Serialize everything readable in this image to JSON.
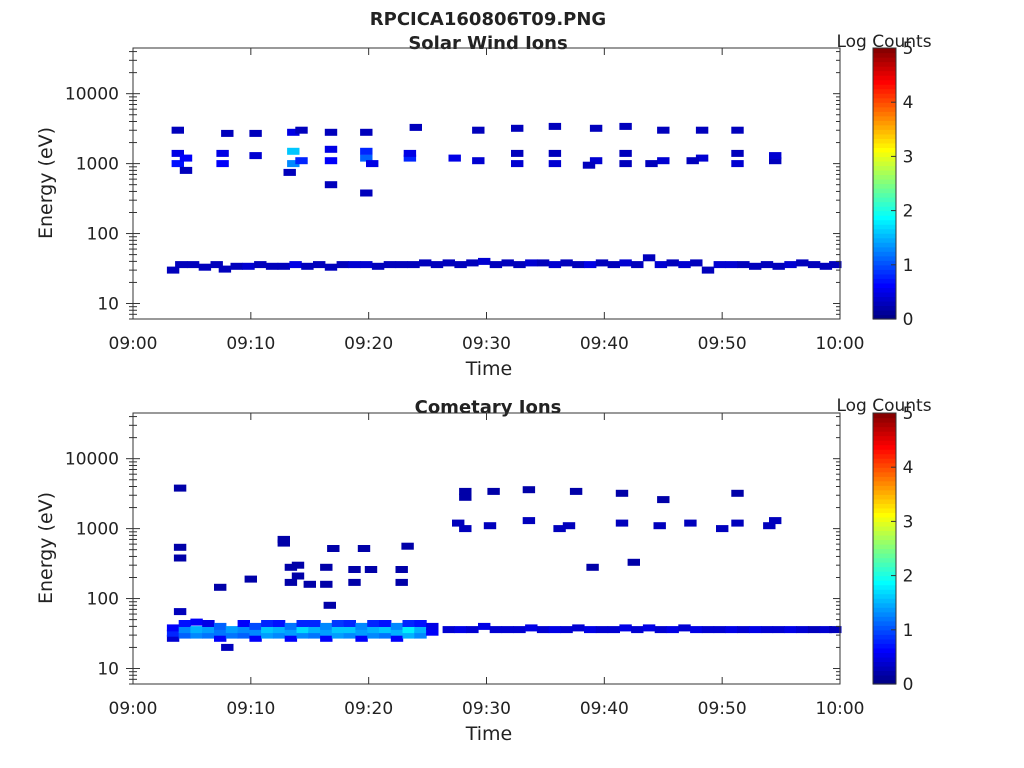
{
  "figure": {
    "filename": "RPCICA160806T09.PNG"
  },
  "colormap": {
    "stops": [
      "#00007f",
      "#0000ff",
      "#007fff",
      "#00ffff",
      "#7fff7f",
      "#ffff00",
      "#ff7f00",
      "#ff0000",
      "#7f0000"
    ],
    "white": "#ffffff"
  },
  "chart_data": [
    {
      "type": "heatmap",
      "title": "Solar Wind Ions",
      "xlabel": "Time",
      "ylabel": "Energy (eV)",
      "x_ticks": [
        "09:00",
        "09:10",
        "09:20",
        "09:30",
        "09:40",
        "09:50",
        "10:00"
      ],
      "x_range_minutes": [
        0,
        60
      ],
      "y_scale": "log",
      "y_ticks": [
        "10",
        "100",
        "1000",
        "10000"
      ],
      "y_range": [
        6,
        45000
      ],
      "colorbar": {
        "label": "Log Counts",
        "range": [
          0,
          5
        ],
        "ticks": [
          "0",
          "1",
          "2",
          "3",
          "4",
          "5"
        ]
      },
      "cells": [
        [
          3.4,
          30,
          0.3
        ],
        [
          4.1,
          36,
          0.3
        ],
        [
          5.1,
          36,
          0.3
        ],
        [
          6.1,
          33,
          0.3
        ],
        [
          7.1,
          36,
          0.3
        ],
        [
          7.8,
          31,
          0.3
        ],
        [
          8.8,
          34,
          0.3
        ],
        [
          9.8,
          34,
          0.4
        ],
        [
          10.8,
          36,
          0.3
        ],
        [
          11.8,
          34,
          0.3
        ],
        [
          12.8,
          34,
          0.3
        ],
        [
          13.8,
          36,
          0.5
        ],
        [
          14.8,
          34,
          0.3
        ],
        [
          15.8,
          36,
          0.3
        ],
        [
          16.8,
          33,
          0.3
        ],
        [
          17.8,
          36,
          0.3
        ],
        [
          18.8,
          36,
          0.4
        ],
        [
          19.8,
          36,
          0.4
        ],
        [
          20.8,
          34,
          0.3
        ],
        [
          21.8,
          36,
          0.3
        ],
        [
          22.8,
          36,
          0.3
        ],
        [
          23.8,
          36,
          0.3
        ],
        [
          24.8,
          38,
          0.3
        ],
        [
          25.8,
          36,
          0.3
        ],
        [
          26.8,
          38,
          0.3
        ],
        [
          27.8,
          36,
          0.3
        ],
        [
          28.8,
          38,
          0.3
        ],
        [
          29.8,
          40,
          0.4
        ],
        [
          30.8,
          36,
          0.3
        ],
        [
          31.8,
          38,
          0.3
        ],
        [
          32.8,
          36,
          0.3
        ],
        [
          33.8,
          38,
          0.4
        ],
        [
          34.8,
          38,
          0.3
        ],
        [
          35.8,
          36,
          0.4
        ],
        [
          36.8,
          38,
          0.3
        ],
        [
          37.8,
          36,
          0.3
        ],
        [
          38.8,
          36,
          0.5
        ],
        [
          39.8,
          38,
          0.3
        ],
        [
          40.8,
          36,
          0.3
        ],
        [
          41.8,
          38,
          0.4
        ],
        [
          42.8,
          36,
          0.3
        ],
        [
          43.8,
          45,
          0.3
        ],
        [
          44.8,
          36,
          0.4
        ],
        [
          45.8,
          38,
          0.3
        ],
        [
          46.8,
          36,
          0.4
        ],
        [
          47.8,
          38,
          0.3
        ],
        [
          48.8,
          30,
          0.3
        ],
        [
          49.8,
          36,
          0.4
        ],
        [
          50.8,
          36,
          0.4
        ],
        [
          51.8,
          36,
          0.3
        ],
        [
          52.8,
          34,
          0.3
        ],
        [
          53.8,
          36,
          0.3
        ],
        [
          54.8,
          34,
          0.3
        ],
        [
          55.8,
          36,
          0.4
        ],
        [
          56.8,
          38,
          0.3
        ],
        [
          57.8,
          36,
          0.3
        ],
        [
          58.8,
          34,
          0.3
        ],
        [
          59.6,
          36,
          0.3
        ],
        [
          3.8,
          1000,
          0.7
        ],
        [
          3.8,
          1400,
          0.5
        ],
        [
          3.8,
          3000,
          0.3
        ],
        [
          4.5,
          800,
          0.3
        ],
        [
          4.5,
          1200,
          0.6
        ],
        [
          7.6,
          1000,
          0.6
        ],
        [
          7.6,
          1400,
          0.5
        ],
        [
          8.0,
          2700,
          0.3
        ],
        [
          10.4,
          1300,
          0.4
        ],
        [
          10.4,
          2700,
          0.3
        ],
        [
          13.6,
          1000,
          1.3
        ],
        [
          13.6,
          1500,
          1.6
        ],
        [
          13.6,
          2800,
          0.5
        ],
        [
          14.3,
          1100,
          0.8
        ],
        [
          14.3,
          3000,
          0.3
        ],
        [
          13.3,
          750,
          0.3
        ],
        [
          16.8,
          1100,
          0.6
        ],
        [
          16.8,
          1600,
          0.5
        ],
        [
          16.8,
          2800,
          0.3
        ],
        [
          16.8,
          500,
          0.3
        ],
        [
          19.8,
          1200,
          1.1
        ],
        [
          19.8,
          1500,
          0.8
        ],
        [
          19.8,
          2800,
          0.3
        ],
        [
          20.3,
          1000,
          0.5
        ],
        [
          19.8,
          380,
          0.3
        ],
        [
          23.5,
          1200,
          0.8
        ],
        [
          23.5,
          1400,
          0.5
        ],
        [
          24.0,
          3300,
          0.3
        ],
        [
          27.3,
          1200,
          0.5
        ],
        [
          29.3,
          1100,
          0.4
        ],
        [
          29.3,
          3000,
          0.3
        ],
        [
          32.6,
          1000,
          0.4
        ],
        [
          32.6,
          1400,
          0.3
        ],
        [
          32.6,
          3200,
          0.3
        ],
        [
          35.8,
          1000,
          0.4
        ],
        [
          35.8,
          1400,
          0.3
        ],
        [
          35.8,
          3400,
          0.3
        ],
        [
          39.3,
          1100,
          0.4
        ],
        [
          39.3,
          3200,
          0.3
        ],
        [
          38.7,
          950,
          0.3
        ],
        [
          41.8,
          1000,
          0.3
        ],
        [
          41.8,
          1400,
          0.3
        ],
        [
          41.8,
          3400,
          0.3
        ],
        [
          45.0,
          1100,
          0.4
        ],
        [
          45.0,
          3000,
          0.3
        ],
        [
          44.0,
          1000,
          0.3
        ],
        [
          48.3,
          1200,
          0.4
        ],
        [
          48.3,
          3000,
          0.3
        ],
        [
          47.5,
          1100,
          0.3
        ],
        [
          51.3,
          1000,
          0.4
        ],
        [
          51.3,
          1400,
          0.3
        ],
        [
          51.3,
          3000,
          0.3
        ],
        [
          54.5,
          1100,
          0.3
        ],
        [
          54.5,
          1300,
          0.4
        ]
      ]
    },
    {
      "type": "heatmap",
      "title": "Cometary Ions",
      "xlabel": "Time",
      "ylabel": "Energy (eV)",
      "x_ticks": [
        "09:00",
        "09:10",
        "09:20",
        "09:30",
        "09:40",
        "09:50",
        "10:00"
      ],
      "x_range_minutes": [
        0,
        60
      ],
      "y_scale": "log",
      "y_ticks": [
        "10",
        "100",
        "1000",
        "10000"
      ],
      "y_range": [
        6,
        45000
      ],
      "colorbar": {
        "label": "Log Counts",
        "range": [
          0,
          5
        ],
        "ticks": [
          "0",
          "1",
          "2",
          "3",
          "4",
          "5"
        ]
      },
      "cells": [
        [
          3.4,
          27,
          0.4
        ],
        [
          3.4,
          32,
          0.8
        ],
        [
          3.4,
          38,
          0.6
        ],
        [
          4.4,
          30,
          1.1
        ],
        [
          4.4,
          36,
          1.3
        ],
        [
          4.4,
          44,
          0.7
        ],
        [
          5.4,
          30,
          1.3
        ],
        [
          5.4,
          36,
          1.5
        ],
        [
          5.4,
          46,
          0.6
        ],
        [
          6.4,
          30,
          1.2
        ],
        [
          6.4,
          36,
          1.4
        ],
        [
          6.4,
          44,
          0.5
        ],
        [
          7.4,
          27,
          0.6
        ],
        [
          7.4,
          33,
          1.2
        ],
        [
          7.4,
          40,
          1.1
        ],
        [
          8.0,
          20,
          0.3
        ],
        [
          8.4,
          30,
          1.2
        ],
        [
          8.4,
          36,
          1.4
        ],
        [
          9.4,
          30,
          1.1
        ],
        [
          9.4,
          36,
          1.3
        ],
        [
          9.4,
          44,
          0.6
        ],
        [
          10.4,
          27,
          0.6
        ],
        [
          10.4,
          33,
          1.3
        ],
        [
          10.4,
          40,
          1.0
        ],
        [
          11.4,
          30,
          1.4
        ],
        [
          11.4,
          36,
          1.6
        ],
        [
          11.4,
          44,
          0.8
        ],
        [
          12.4,
          30,
          1.3
        ],
        [
          12.4,
          36,
          1.5
        ],
        [
          12.4,
          44,
          0.7
        ],
        [
          13.4,
          27,
          0.6
        ],
        [
          13.4,
          33,
          1.4
        ],
        [
          13.4,
          40,
          1.2
        ],
        [
          14.4,
          30,
          1.3
        ],
        [
          14.4,
          36,
          1.7
        ],
        [
          14.4,
          44,
          0.8
        ],
        [
          15.4,
          30,
          1.2
        ],
        [
          15.4,
          36,
          1.5
        ],
        [
          15.4,
          44,
          0.8
        ],
        [
          16.4,
          27,
          0.6
        ],
        [
          16.4,
          33,
          1.4
        ],
        [
          16.4,
          40,
          1.3
        ],
        [
          17.4,
          30,
          1.4
        ],
        [
          17.4,
          36,
          1.6
        ],
        [
          17.4,
          44,
          0.9
        ],
        [
          18.4,
          30,
          1.3
        ],
        [
          18.4,
          36,
          1.6
        ],
        [
          18.4,
          44,
          0.8
        ],
        [
          19.4,
          27,
          0.6
        ],
        [
          19.4,
          33,
          1.4
        ],
        [
          19.4,
          40,
          1.3
        ],
        [
          20.4,
          30,
          1.3
        ],
        [
          20.4,
          36,
          1.5
        ],
        [
          20.4,
          44,
          0.8
        ],
        [
          21.4,
          30,
          1.2
        ],
        [
          21.4,
          36,
          1.6
        ],
        [
          21.4,
          44,
          0.7
        ],
        [
          22.4,
          27,
          0.6
        ],
        [
          22.4,
          33,
          1.5
        ],
        [
          22.4,
          40,
          1.3
        ],
        [
          23.4,
          30,
          1.5
        ],
        [
          23.4,
          36,
          1.8
        ],
        [
          23.4,
          44,
          0.8
        ],
        [
          24.4,
          30,
          1.3
        ],
        [
          24.4,
          36,
          1.5
        ],
        [
          24.4,
          44,
          0.7
        ],
        [
          25.4,
          33,
          0.6
        ],
        [
          25.4,
          40,
          0.5
        ],
        [
          26.8,
          36,
          0.4
        ],
        [
          27.8,
          36,
          0.5
        ],
        [
          28.8,
          36,
          0.4
        ],
        [
          29.8,
          40,
          0.5
        ],
        [
          30.8,
          36,
          0.4
        ],
        [
          31.8,
          36,
          0.4
        ],
        [
          32.8,
          36,
          0.4
        ],
        [
          33.8,
          38,
          0.5
        ],
        [
          34.8,
          36,
          0.4
        ],
        [
          35.8,
          36,
          0.5
        ],
        [
          36.8,
          36,
          0.4
        ],
        [
          37.8,
          38,
          0.4
        ],
        [
          38.8,
          36,
          0.5
        ],
        [
          39.8,
          36,
          0.4
        ],
        [
          40.8,
          36,
          0.4
        ],
        [
          41.8,
          38,
          0.5
        ],
        [
          42.8,
          36,
          0.4
        ],
        [
          43.8,
          38,
          0.5
        ],
        [
          44.8,
          36,
          0.4
        ],
        [
          45.8,
          36,
          0.5
        ],
        [
          46.8,
          38,
          0.4
        ],
        [
          47.8,
          36,
          0.5
        ],
        [
          48.8,
          36,
          0.4
        ],
        [
          49.8,
          36,
          0.4
        ],
        [
          50.8,
          36,
          0.5
        ],
        [
          51.8,
          36,
          0.4
        ],
        [
          52.8,
          36,
          0.5
        ],
        [
          53.8,
          36,
          0.4
        ],
        [
          54.8,
          36,
          0.4
        ],
        [
          55.8,
          36,
          0.5
        ],
        [
          56.8,
          36,
          0.4
        ],
        [
          57.8,
          36,
          0.3
        ],
        [
          58.8,
          36,
          0.4
        ],
        [
          59.6,
          36,
          0.3
        ],
        [
          4.0,
          65,
          0.3
        ],
        [
          4.0,
          380,
          0.2
        ],
        [
          4.0,
          540,
          0.2
        ],
        [
          4.0,
          3800,
          0.2
        ],
        [
          7.4,
          145,
          0.2
        ],
        [
          10.0,
          190,
          0.2
        ],
        [
          12.8,
          700,
          0.2
        ],
        [
          12.8,
          620,
          0.2
        ],
        [
          13.4,
          170,
          0.2
        ],
        [
          13.4,
          280,
          0.2
        ],
        [
          14.0,
          300,
          0.2
        ],
        [
          14.0,
          210,
          0.2
        ],
        [
          15.0,
          160,
          0.2
        ],
        [
          16.4,
          160,
          0.2
        ],
        [
          16.4,
          280,
          0.2
        ],
        [
          17.0,
          520,
          0.2
        ],
        [
          16.7,
          80,
          0.2
        ],
        [
          18.8,
          260,
          0.2
        ],
        [
          18.8,
          170,
          0.2
        ],
        [
          19.6,
          520,
          0.2
        ],
        [
          20.2,
          260,
          0.2
        ],
        [
          22.8,
          170,
          0.2
        ],
        [
          22.8,
          260,
          0.2
        ],
        [
          23.3,
          560,
          0.2
        ],
        [
          27.6,
          1200,
          0.3
        ],
        [
          28.2,
          1000,
          0.3
        ],
        [
          28.2,
          3400,
          0.2
        ],
        [
          28.2,
          2800,
          0.2
        ],
        [
          30.3,
          1100,
          0.3
        ],
        [
          30.6,
          3400,
          0.2
        ],
        [
          33.6,
          1300,
          0.3
        ],
        [
          33.6,
          3600,
          0.2
        ],
        [
          36.2,
          1000,
          0.3
        ],
        [
          37.0,
          1100,
          0.3
        ],
        [
          37.6,
          3400,
          0.2
        ],
        [
          39.0,
          280,
          0.2
        ],
        [
          41.5,
          1200,
          0.3
        ],
        [
          41.5,
          3200,
          0.2
        ],
        [
          42.5,
          330,
          0.2
        ],
        [
          44.7,
          1100,
          0.3
        ],
        [
          45.0,
          2600,
          0.2
        ],
        [
          47.3,
          1200,
          0.3
        ],
        [
          50.0,
          1000,
          0.3
        ],
        [
          51.3,
          1200,
          0.3
        ],
        [
          51.3,
          3200,
          0.2
        ],
        [
          54.0,
          1100,
          0.3
        ],
        [
          54.5,
          1300,
          0.3
        ]
      ]
    }
  ]
}
